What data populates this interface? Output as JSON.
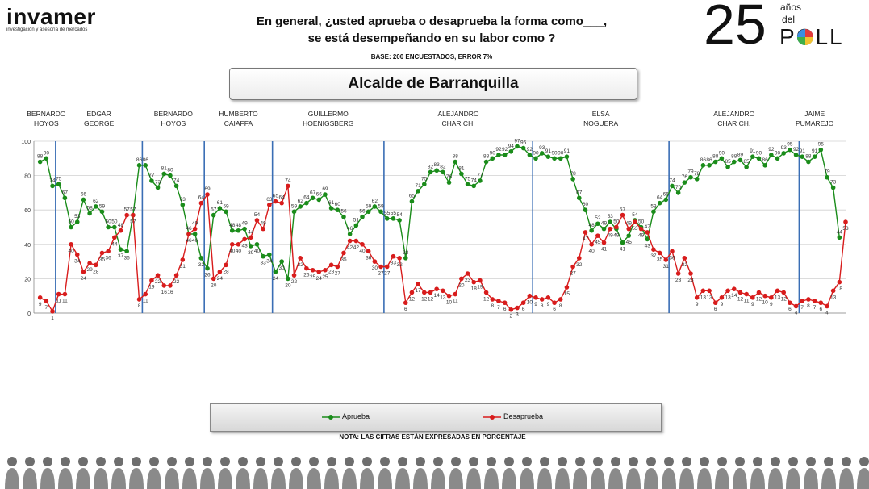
{
  "logo": {
    "brand": "invamer",
    "tagline": "investigación y asesoría de mercados"
  },
  "question": {
    "line1": "En general, ¿usted aprueba o desaprueba la forma como___,",
    "line2": "se está desempeñando en su labor como ?"
  },
  "base": "BASE: 200 ENCUESTADOS, ERROR 7%",
  "anniversary": {
    "number": "25",
    "anos": "años",
    "del": "del",
    "poll": "POLL"
  },
  "title": "Alcalde de Barranquilla",
  "legend": {
    "approve": "Aprueba",
    "disapprove": "Desaprueba"
  },
  "note": "NOTA: LAS CIFRAS ESTÁN EXPRESADAS EN PORCENTAJE",
  "colors": {
    "approve": "#1a8c1a",
    "disapprove": "#d81c1c",
    "divider": "#3a6eb5",
    "grid": "#d0d0d0"
  },
  "chart_data": {
    "type": "line",
    "ylim": [
      0,
      100
    ],
    "yticks": [
      0,
      20,
      40,
      60,
      80,
      100
    ],
    "periods": [
      {
        "name": "BERNARDO\nHOYOS",
        "n": 3
      },
      {
        "name": "EDGAR\nGEORGE",
        "n": 14
      },
      {
        "name": "BERNARDO\nHOYOS",
        "n": 10
      },
      {
        "name": "HUMBERTO\nCAIAFFA",
        "n": 11
      },
      {
        "name": "GUILLERMO\nHOENIGSBERG",
        "n": 18
      },
      {
        "name": "ALEJANDRO\nCHAR CH.",
        "n": 24
      },
      {
        "name": "ELSA\nNOGUERA",
        "n": 22
      },
      {
        "name": "ALEJANDRO\nCHAR CH.",
        "n": 21
      },
      {
        "name": "JAIME\nPUMAREJO",
        "n": 5
      }
    ],
    "series": [
      {
        "name": "Aprueba",
        "values": [
          88,
          90,
          74,
          75,
          67,
          50,
          53,
          66,
          58,
          62,
          59,
          50,
          50,
          37,
          36,
          57,
          86,
          86,
          77,
          73,
          81,
          80,
          74,
          63,
          46,
          46,
          32,
          26,
          57,
          61,
          59,
          48,
          48,
          49,
          39,
          40,
          33,
          34,
          24,
          30,
          20,
          59,
          62,
          64,
          67,
          66,
          69,
          61,
          60,
          56,
          46,
          51,
          56,
          59,
          62,
          59,
          55,
          55,
          54,
          32,
          65,
          71,
          75,
          82,
          83,
          82,
          76,
          88,
          81,
          75,
          74,
          77,
          88,
          90,
          92,
          92,
          94,
          97,
          96,
          92,
          90,
          93,
          91,
          90,
          90,
          91,
          78,
          67,
          60,
          48,
          52,
          49,
          53,
          49,
          41,
          45,
          54,
          50,
          43,
          59,
          64,
          66,
          74,
          70,
          76,
          79,
          78,
          86,
          86,
          88,
          90,
          85,
          88,
          89,
          85,
          91,
          90,
          86,
          92,
          90,
          93,
          95,
          92,
          91,
          88,
          91,
          95,
          79,
          73,
          44
        ]
      },
      {
        "name": "Desaprueba",
        "values": [
          9,
          7,
          1,
          11,
          11,
          40,
          34,
          24,
          29,
          28,
          35,
          36,
          44,
          48,
          57,
          57,
          8,
          11,
          19,
          22,
          16,
          16,
          22,
          31,
          46,
          49,
          64,
          69,
          20,
          24,
          28,
          40,
          40,
          43,
          44,
          54,
          49,
          63,
          65,
          64,
          74,
          22,
          32,
          26,
          25,
          24,
          25,
          28,
          27,
          35,
          42,
          42,
          40,
          36,
          30,
          27,
          27,
          33,
          32,
          6,
          12,
          17,
          12,
          12,
          14,
          13,
          10,
          11,
          20,
          23,
          18,
          19,
          12,
          8,
          7,
          6,
          2,
          3,
          6,
          10,
          9,
          8,
          9,
          6,
          8,
          15,
          27,
          32,
          47,
          40,
          45,
          41,
          49,
          50,
          57,
          49,
          53,
          49,
          47,
          37,
          35,
          31,
          36,
          23,
          32,
          23,
          9,
          13,
          13,
          6,
          9,
          13,
          14,
          12,
          11,
          9,
          12,
          10,
          9,
          13,
          12,
          6,
          4,
          7,
          8,
          7,
          6,
          4,
          13,
          18,
          53
        ]
      }
    ]
  }
}
